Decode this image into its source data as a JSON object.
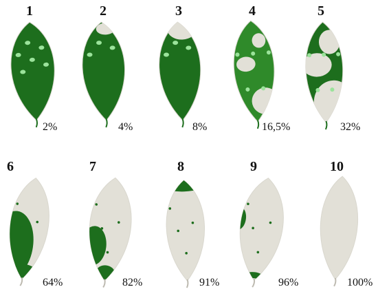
{
  "colors": {
    "healthy": "#1d6e1d",
    "healthy_alt": "#2f8a2a",
    "diseased": "#e2e0d7",
    "spot": "#9be39b",
    "edge": "#d9d7ce"
  },
  "leaves": [
    {
      "number": "1",
      "severity_label": "2%",
      "severity": 2
    },
    {
      "number": "2",
      "severity_label": "4%",
      "severity": 4
    },
    {
      "number": "3",
      "severity_label": "8%",
      "severity": 8
    },
    {
      "number": "4",
      "severity_label": "16,5%",
      "severity": 16.5
    },
    {
      "number": "5",
      "severity_label": "32%",
      "severity": 32
    },
    {
      "number": "6",
      "severity_label": "64%",
      "severity": 64
    },
    {
      "number": "7",
      "severity_label": "82%",
      "severity": 82
    },
    {
      "number": "8",
      "severity_label": "91%",
      "severity": 91
    },
    {
      "number": "9",
      "severity_label": "96%",
      "severity": 96
    },
    {
      "number": "10",
      "severity_label": "100%",
      "severity": 100
    }
  ]
}
